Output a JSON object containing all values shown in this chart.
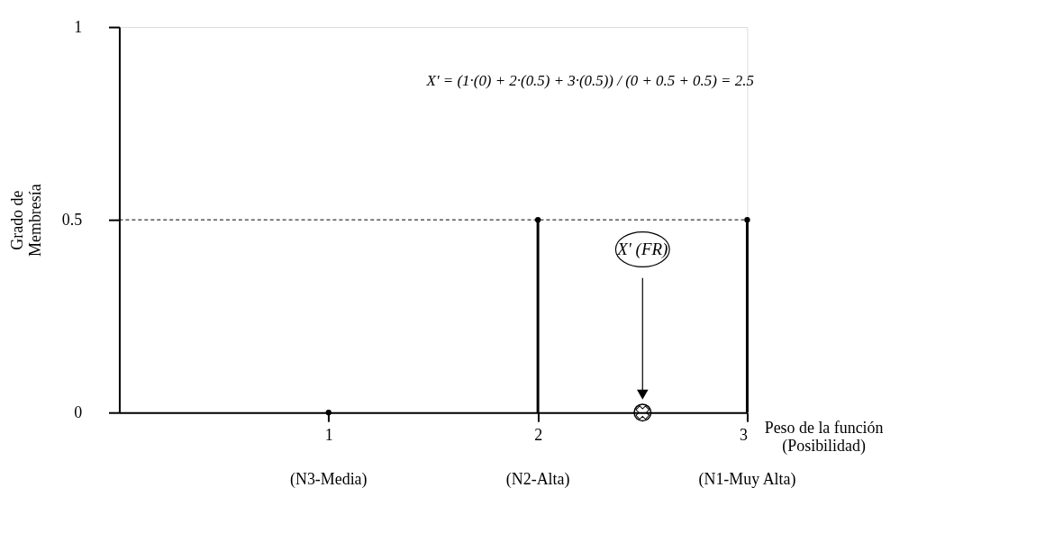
{
  "chart_data": {
    "type": "lollipop",
    "series": [
      {
        "x": [
          1,
          2,
          3
        ],
        "values": [
          0,
          0.5,
          0.5
        ],
        "color": "#000000",
        "marker": "circle"
      },
      {
        "type": "scatter",
        "x": [
          2.5
        ],
        "values": [
          0
        ],
        "color": "#000000",
        "marker": "circle"
      }
    ],
    "xlim": [
      0,
      3
    ],
    "xticks": [
      1,
      2,
      3
    ],
    "ylim": [
      0,
      1
    ],
    "yticks": [
      0,
      0.5,
      1
    ],
    "xlabel": "Peso de la función\n(Posibilidad)",
    "ylabel": "Grado de\nMembresía",
    "grid": false,
    "ref_lines": [
      {
        "axis": "y",
        "value": 0.5,
        "line_style": "dashed",
        "color": "#000000"
      }
    ],
    "annotations": [
      "X′ = (1·(0) + 2·(0.5) + 3·(0.5)) / (0 + 0.5 + 0.5) = 2.5",
      "X' (FR)",
      "(N3-Media)",
      "(N2-Alta)",
      "(N1-Muy Alta)"
    ]
  }
}
